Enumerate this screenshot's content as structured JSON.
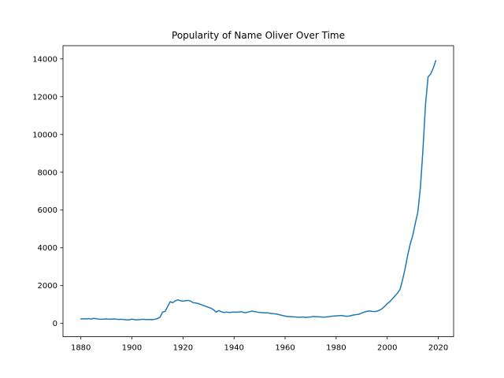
{
  "chart_data": {
    "type": "line",
    "title": "Popularity of Name Oliver Over Time",
    "xlabel": "",
    "ylabel": "",
    "xlim": [
      1873,
      2026
    ],
    "ylim": [
      -700,
      14700
    ],
    "x_ticks": [
      1880,
      1900,
      1920,
      1940,
      1960,
      1980,
      2000,
      2020
    ],
    "y_ticks": [
      0,
      2000,
      4000,
      6000,
      8000,
      10000,
      12000,
      14000
    ],
    "grid": false,
    "legend": "none",
    "line_color": "#1f77b4",
    "series": [
      {
        "x": [
          1880,
          1881,
          1882,
          1883,
          1884,
          1885,
          1886,
          1887,
          1888,
          1889,
          1890,
          1891,
          1892,
          1893,
          1894,
          1895,
          1896,
          1897,
          1898,
          1899,
          1900,
          1901,
          1902,
          1903,
          1904,
          1905,
          1906,
          1907,
          1908,
          1909,
          1910,
          1911,
          1912,
          1913,
          1914,
          1915,
          1916,
          1917,
          1918,
          1919,
          1920,
          1921,
          1922,
          1923,
          1924,
          1925,
          1926,
          1927,
          1928,
          1929,
          1930,
          1931,
          1932,
          1933,
          1934,
          1935,
          1936,
          1937,
          1938,
          1939,
          1940,
          1941,
          1942,
          1943,
          1944,
          1945,
          1946,
          1947,
          1948,
          1949,
          1950,
          1951,
          1952,
          1953,
          1954,
          1955,
          1956,
          1957,
          1958,
          1959,
          1960,
          1961,
          1962,
          1963,
          1964,
          1965,
          1966,
          1967,
          1968,
          1969,
          1970,
          1971,
          1972,
          1973,
          1974,
          1975,
          1976,
          1977,
          1978,
          1979,
          1980,
          1981,
          1982,
          1983,
          1984,
          1985,
          1986,
          1987,
          1988,
          1989,
          1990,
          1991,
          1992,
          1993,
          1994,
          1995,
          1996,
          1997,
          1998,
          1999,
          2000,
          2001,
          2002,
          2003,
          2004,
          2005,
          2006,
          2007,
          2008,
          2009,
          2010,
          2011,
          2012,
          2013,
          2014,
          2015,
          2016,
          2017,
          2018,
          2019
        ],
        "values": [
          240,
          250,
          240,
          260,
          230,
          270,
          250,
          230,
          220,
          230,
          240,
          220,
          230,
          240,
          220,
          210,
          220,
          200,
          190,
          190,
          230,
          200,
          190,
          200,
          220,
          210,
          200,
          210,
          200,
          220,
          260,
          330,
          600,
          640,
          900,
          1150,
          1100,
          1200,
          1250,
          1200,
          1180,
          1200,
          1220,
          1180,
          1100,
          1080,
          1050,
          1000,
          950,
          900,
          850,
          800,
          720,
          600,
          680,
          620,
          580,
          600,
          580,
          590,
          600,
          590,
          610,
          620,
          570,
          580,
          620,
          650,
          630,
          600,
          580,
          570,
          560,
          560,
          540,
          520,
          510,
          490,
          450,
          420,
          390,
          370,
          360,
          350,
          340,
          330,
          330,
          340,
          320,
          330,
          340,
          370,
          360,
          350,
          340,
          330,
          340,
          350,
          380,
          390,
          400,
          410,
          420,
          400,
          380,
          390,
          420,
          450,
          470,
          490,
          550,
          600,
          640,
          660,
          640,
          630,
          650,
          700,
          780,
          900,
          1050,
          1150,
          1300,
          1450,
          1600,
          1800,
          2300,
          2900,
          3600,
          4200,
          4650,
          5300,
          5900,
          7200,
          9200,
          11600,
          13050,
          13200,
          13500,
          13900
        ]
      }
    ]
  }
}
